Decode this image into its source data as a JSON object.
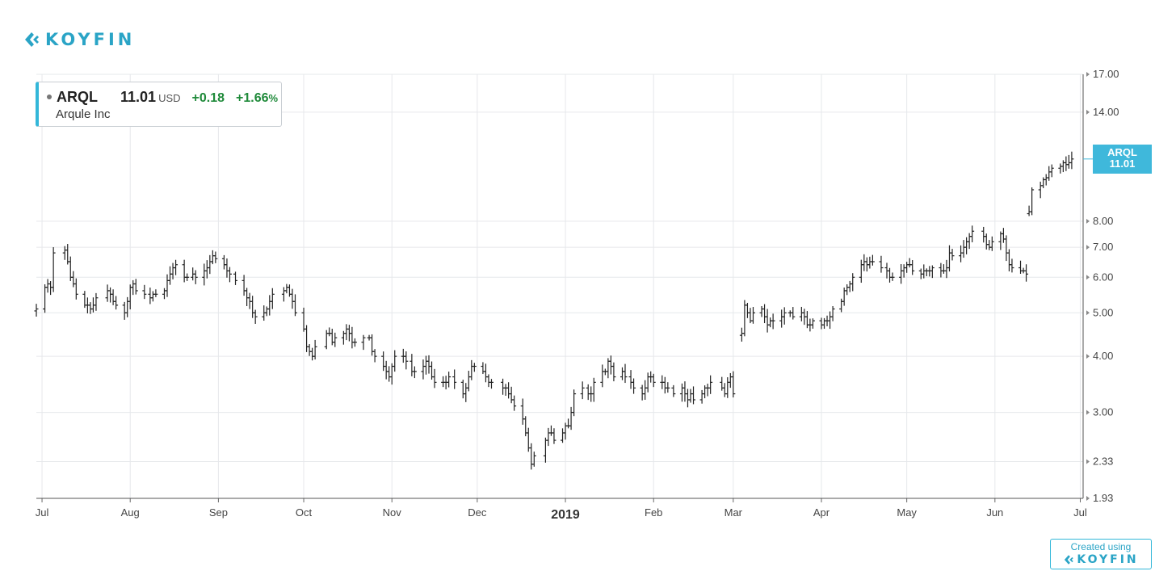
{
  "brand": {
    "logo_text": "KOYFIN",
    "color": "#2aa4c6"
  },
  "legend": {
    "symbol": "ARQL",
    "price": "11.01",
    "currency": "USD",
    "change": "+0.18",
    "change_pct": "+1.66",
    "pct_sign": "%",
    "name": "Arqule Inc",
    "up_color": "#1f8a3a",
    "accent_color": "#33b7d9"
  },
  "price_tag": {
    "symbol": "ARQL",
    "value": "11.01",
    "color": "#3fb8db"
  },
  "footer": {
    "created_using": "Created using",
    "logo_text": "KOYFIN"
  },
  "chart_data": {
    "type": "ohlc",
    "scale": "log",
    "ylim": [
      1.93,
      17.0
    ],
    "y_ticks": [
      "17.00",
      "14.00",
      "8.00",
      "7.00",
      "6.00",
      "5.00",
      "4.00",
      "3.00",
      "2.33",
      "1.93"
    ],
    "x_ticks": [
      "Jul",
      "Aug",
      "Sep",
      "Oct",
      "Nov",
      "Dec",
      "2019",
      "Feb",
      "Mar",
      "Apr",
      "May",
      "Jun",
      "Jul"
    ],
    "x_range": [
      "2018-06-29",
      "2019-07-02"
    ],
    "grid": true,
    "series": [
      {
        "name": "ARQL",
        "segments": [
          {
            "from": "2018-06-29",
            "to": "2019-03-01",
            "closes": [
              5.1,
              5.7,
              5.8,
              5.7,
              6.8,
              6.9,
              6.5,
              6.0,
              5.8,
              5.5,
              5.2,
              5.2,
              5.1,
              5.2,
              5.4,
              5.6,
              5.5,
              5.3,
              5.2,
              5.0,
              5.3,
              5.7,
              5.8,
              5.6,
              5.5,
              5.4,
              5.5,
              5.5,
              5.6,
              5.9,
              6.1,
              6.3,
              6.4,
              6.0,
              6.0,
              6.1,
              6.0,
              6.2,
              6.3,
              6.5,
              6.7,
              6.6,
              6.4,
              6.2,
              6.1,
              5.9,
              5.6,
              5.4,
              5.3,
              5.0,
              4.9,
              5.0,
              5.1,
              5.3,
              5.5,
              5.6,
              5.7,
              5.5,
              5.3,
              5.0,
              4.6,
              4.2,
              4.1,
              4.0,
              4.2,
              4.5,
              4.5,
              4.3,
              4.4,
              4.5,
              4.6,
              4.5,
              4.3,
              4.3,
              4.4,
              4.4,
              4.1,
              4.0,
              3.8,
              3.7,
              3.6,
              3.8,
              4.0,
              4.0,
              3.9,
              3.7,
              3.7,
              3.8,
              3.9,
              3.8,
              3.6,
              3.5,
              3.5,
              3.5,
              3.6,
              3.5,
              3.3,
              3.4,
              3.6,
              3.8,
              3.8,
              3.7,
              3.6,
              3.5,
              3.5,
              3.4,
              3.4,
              3.3,
              3.2,
              3.1,
              2.9,
              2.7,
              2.5,
              2.3,
              2.4,
              2.6,
              2.7,
              2.7,
              2.6,
              2.7,
              2.8,
              2.8,
              3.0,
              3.3,
              3.4,
              3.3,
              3.3,
              3.5,
              3.7,
              3.7,
              3.9,
              3.8,
              3.6,
              3.7,
              3.6,
              3.5,
              3.4,
              3.3,
              3.4,
              3.6,
              3.6,
              3.5,
              3.5,
              3.4,
              3.4,
              3.3,
              3.4,
              3.3,
              3.2,
              3.3,
              3.2,
              3.3,
              3.4,
              3.4,
              3.5,
              3.4,
              3.3,
              3.5,
              3.6,
              3.3
            ]
          },
          {
            "from": "2019-03-04",
            "to": "2019-06-12",
            "closes": [
              4.5,
              5.2,
              5.0,
              4.8,
              5.0,
              5.1,
              4.9,
              4.7,
              4.8,
              4.8,
              4.9,
              5.0,
              5.0,
              4.9,
              5.0,
              4.9,
              4.7,
              4.7,
              4.8,
              4.7,
              4.8,
              4.8,
              4.9,
              5.1,
              5.3,
              5.6,
              5.7,
              5.8,
              6.0,
              6.4,
              6.5,
              6.4,
              6.5,
              6.5,
              6.3,
              6.2,
              6.0,
              6.0,
              6.2,
              6.3,
              6.4,
              6.4,
              6.2,
              6.1,
              6.2,
              6.2,
              6.2,
              6.3,
              6.2,
              6.2,
              6.3,
              6.8,
              6.7,
              6.8,
              7.0,
              7.2,
              7.4,
              7.6,
              7.4,
              7.1,
              7.0,
              7.2,
              7.5,
              7.3,
              6.8,
              6.4,
              6.3,
              6.2,
              6.2,
              6.1
            ]
          },
          {
            "from": "2019-06-13",
            "to": "2019-06-28",
            "closes": [
              8.4,
              9.4,
              9.6,
              9.9,
              10.0,
              10.3,
              10.5,
              10.6,
              10.8,
              10.7,
              10.8,
              11.01
            ]
          }
        ]
      }
    ]
  }
}
